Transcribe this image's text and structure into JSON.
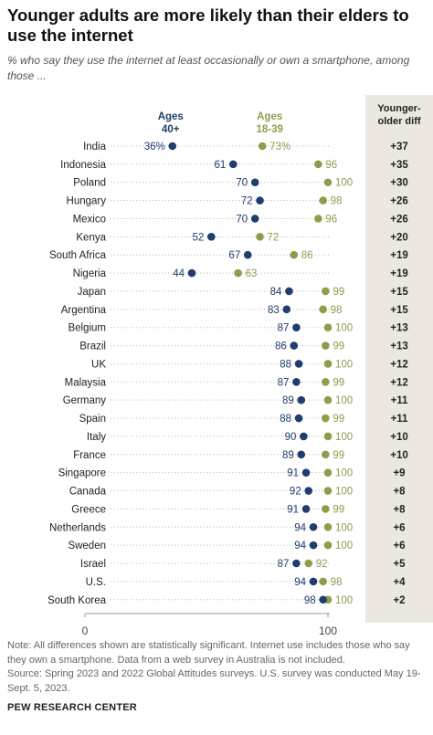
{
  "header": {
    "title": "Younger adults are more likely than their elders to use the internet",
    "subtitle": "% who say they use the internet at least occasionally or own a smartphone, among those ..."
  },
  "diff_header_lines": [
    "Younger-",
    "older diff"
  ],
  "notes": {
    "note": "Note: All differences shown are statistically significant. Internet use includes those who say they own a smartphone. Data from a web survey in Australia is not included.",
    "source": "Source: Spring 2023 and 2022 Global Attitudes surveys. U.S. survey was conducted May 19-Sept. 5, 2023."
  },
  "footer": "PEW RESEARCH CENTER",
  "colors": {
    "older": "#1f3d6e",
    "younger": "#8e9d4c",
    "panel": "#ece8e1"
  },
  "chart_data": {
    "type": "dot",
    "series": [
      {
        "key": "older",
        "name": "Ages 40+",
        "label_lines": [
          "Ages",
          "40+"
        ]
      },
      {
        "key": "younger",
        "name": "Ages 18-39",
        "label_lines": [
          "Ages",
          "18-39"
        ]
      }
    ],
    "xlim": [
      0,
      100
    ],
    "x_ticks": [
      "0",
      "100"
    ],
    "rows": [
      {
        "country": "India",
        "older": 36,
        "younger": 73,
        "older_label": "36%",
        "younger_label": "73%",
        "diff": "+37"
      },
      {
        "country": "Indonesia",
        "older": 61,
        "younger": 96,
        "older_label": "61",
        "younger_label": "96",
        "diff": "+35"
      },
      {
        "country": "Poland",
        "older": 70,
        "younger": 100,
        "older_label": "70",
        "younger_label": "100",
        "diff": "+30"
      },
      {
        "country": "Hungary",
        "older": 72,
        "younger": 98,
        "older_label": "72",
        "younger_label": "98",
        "diff": "+26"
      },
      {
        "country": "Mexico",
        "older": 70,
        "younger": 96,
        "older_label": "70",
        "younger_label": "96",
        "diff": "+26"
      },
      {
        "country": "Kenya",
        "older": 52,
        "younger": 72,
        "older_label": "52",
        "younger_label": "72",
        "diff": "+20"
      },
      {
        "country": "South Africa",
        "older": 67,
        "younger": 86,
        "older_label": "67",
        "younger_label": "86",
        "diff": "+19"
      },
      {
        "country": "Nigeria",
        "older": 44,
        "younger": 63,
        "older_label": "44",
        "younger_label": "63",
        "diff": "+19"
      },
      {
        "country": "Japan",
        "older": 84,
        "younger": 99,
        "older_label": "84",
        "younger_label": "99",
        "diff": "+15"
      },
      {
        "country": "Argentina",
        "older": 83,
        "younger": 98,
        "older_label": "83",
        "younger_label": "98",
        "diff": "+15"
      },
      {
        "country": "Belgium",
        "older": 87,
        "younger": 100,
        "older_label": "87",
        "younger_label": "100",
        "diff": "+13"
      },
      {
        "country": "Brazil",
        "older": 86,
        "younger": 99,
        "older_label": "86",
        "younger_label": "99",
        "diff": "+13"
      },
      {
        "country": "UK",
        "older": 88,
        "younger": 100,
        "older_label": "88",
        "younger_label": "100",
        "diff": "+12"
      },
      {
        "country": "Malaysia",
        "older": 87,
        "younger": 99,
        "older_label": "87",
        "younger_label": "99",
        "diff": "+12"
      },
      {
        "country": "Germany",
        "older": 89,
        "younger": 100,
        "older_label": "89",
        "younger_label": "100",
        "diff": "+11"
      },
      {
        "country": "Spain",
        "older": 88,
        "younger": 99,
        "older_label": "88",
        "younger_label": "99",
        "diff": "+11"
      },
      {
        "country": "Italy",
        "older": 90,
        "younger": 100,
        "older_label": "90",
        "younger_label": "100",
        "diff": "+10"
      },
      {
        "country": "France",
        "older": 89,
        "younger": 99,
        "older_label": "89",
        "younger_label": "99",
        "diff": "+10"
      },
      {
        "country": "Singapore",
        "older": 91,
        "younger": 100,
        "older_label": "91",
        "younger_label": "100",
        "diff": "+9"
      },
      {
        "country": "Canada",
        "older": 92,
        "younger": 100,
        "older_label": "92",
        "younger_label": "100",
        "diff": "+8"
      },
      {
        "country": "Greece",
        "older": 91,
        "younger": 99,
        "older_label": "91",
        "younger_label": "99",
        "diff": "+8"
      },
      {
        "country": "Netherlands",
        "older": 94,
        "younger": 100,
        "older_label": "94",
        "younger_label": "100",
        "diff": "+6"
      },
      {
        "country": "Sweden",
        "older": 94,
        "younger": 100,
        "older_label": "94",
        "younger_label": "100",
        "diff": "+6"
      },
      {
        "country": "Israel",
        "older": 87,
        "younger": 92,
        "older_label": "87",
        "younger_label": "92",
        "diff": "+5"
      },
      {
        "country": "U.S.",
        "older": 94,
        "younger": 98,
        "older_label": "94",
        "younger_label": "98",
        "diff": "+4"
      },
      {
        "country": "South Korea",
        "older": 98,
        "younger": 100,
        "older_label": "98",
        "younger_label": "100",
        "diff": "+2"
      }
    ]
  }
}
